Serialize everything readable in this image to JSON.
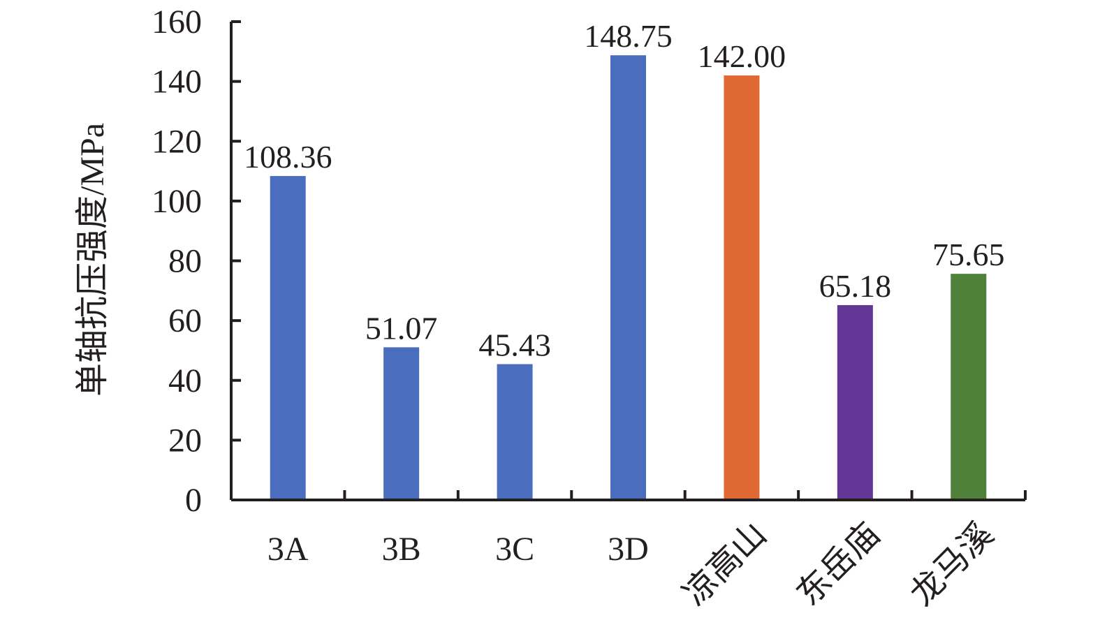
{
  "chart_data": {
    "type": "bar",
    "title": "",
    "xlabel": "",
    "ylabel": "单轴抗压强度/MPa",
    "ylim": [
      0,
      160
    ],
    "yticks": [
      0,
      20,
      40,
      60,
      80,
      100,
      120,
      140,
      160
    ],
    "grid": false,
    "categories": [
      "3A",
      "3B",
      "3C",
      "3D",
      "凉高山",
      "东岳庙",
      "龙马溪"
    ],
    "values": [
      108.36,
      51.07,
      45.43,
      148.75,
      142.0,
      65.18,
      75.65
    ],
    "value_labels": [
      "108.36",
      "51.07",
      "45.43",
      "148.75",
      "142.00",
      "65.18",
      "75.65"
    ],
    "colors": [
      "#4a6ebd",
      "#4a6ebd",
      "#4a6ebd",
      "#4a6ebd",
      "#e06933",
      "#633795",
      "#50813a"
    ]
  }
}
